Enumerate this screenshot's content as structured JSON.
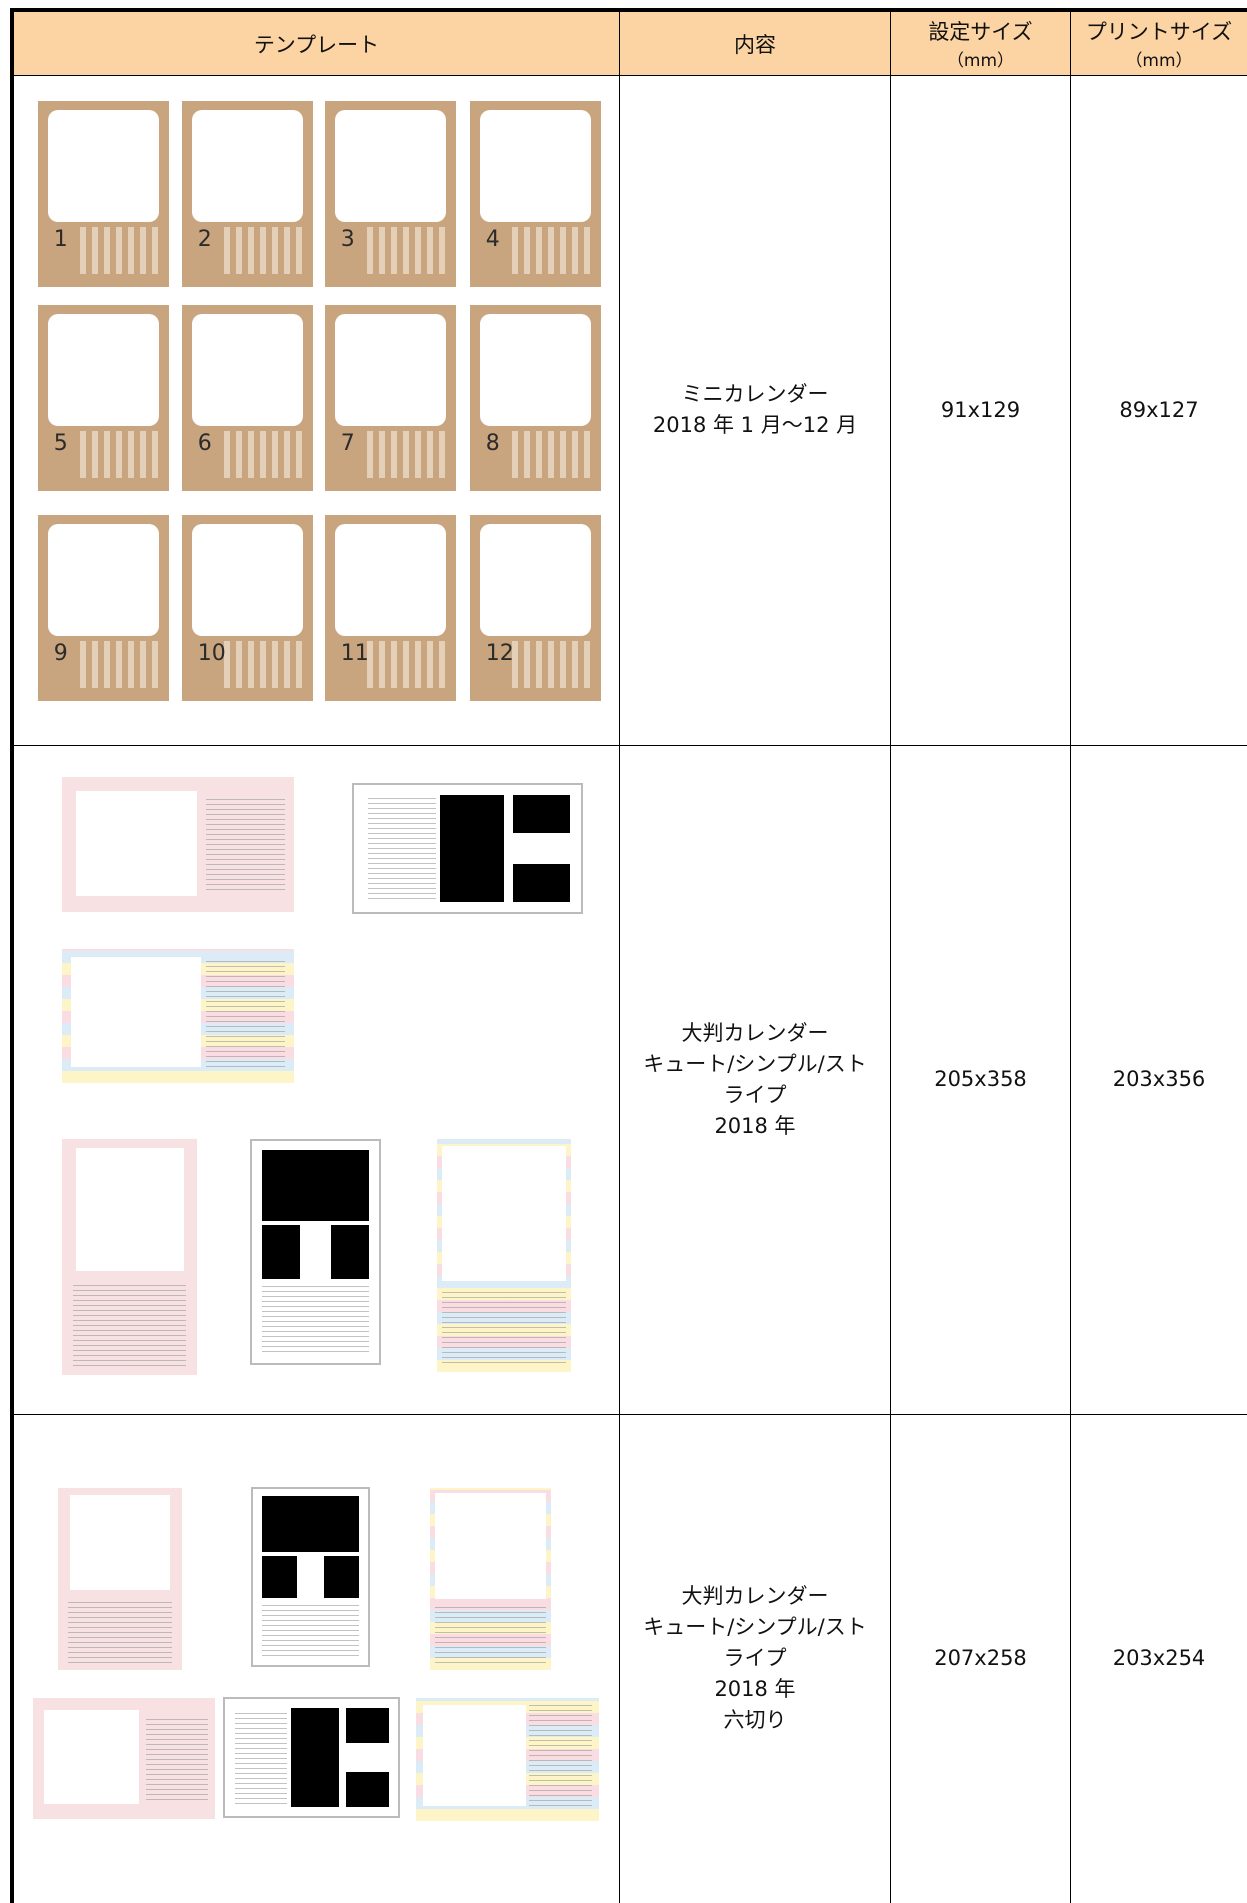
{
  "table": {
    "header": {
      "template": "テンプレート",
      "content": "内容",
      "set_size": [
        "設定サイズ",
        "（mm）"
      ],
      "print_size": [
        "プリントサイズ",
        "（mm）"
      ]
    },
    "rows": [
      {
        "months": [
          "1",
          "2",
          "3",
          "4",
          "5",
          "6",
          "7",
          "8",
          "9",
          "10",
          "11",
          "12"
        ],
        "content": [
          "ミニカレンダー",
          "2018 年 1 月～12 月"
        ],
        "set_size": "91x129",
        "print_size": "89x127"
      },
      {
        "content": [
          "大判カレンダー",
          "キュート/シンプル/スト",
          "ライプ",
          "2018 年"
        ],
        "set_size": "205x358",
        "print_size": "203x356"
      },
      {
        "content": [
          "大判カレンダー",
          "キュート/シンプル/スト",
          "ライプ",
          "2018 年",
          "六切り"
        ],
        "set_size": "207x258",
        "print_size": "203x254"
      }
    ]
  }
}
